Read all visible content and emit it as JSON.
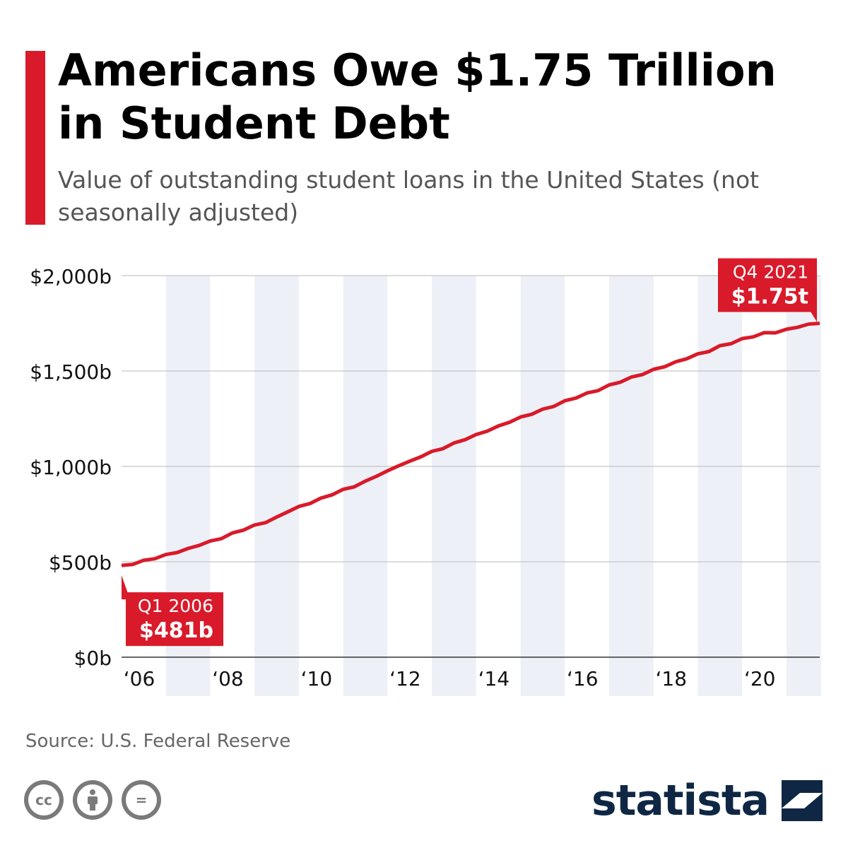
{
  "header": {
    "title": "Americans Owe $1.75 Trillion in Student Debt",
    "subtitle": "Value of outstanding student loans in the United States (not seasonally adjusted)"
  },
  "footer": {
    "source": "Source: U.S. Federal Reserve",
    "brand": "statista"
  },
  "license_icons": [
    {
      "name": "cc-icon",
      "label": "cc"
    },
    {
      "name": "attribution-icon",
      "label": ""
    },
    {
      "name": "no-derivatives-icon",
      "label": "="
    }
  ],
  "colors": {
    "accent": "#d91a2a",
    "line": "#d91a2a",
    "band": "#edf1f7",
    "grid": "#b8b8b8",
    "brand": "#0f2744"
  },
  "chart_data": {
    "type": "line",
    "title": "Americans Owe $1.75 Trillion in Student Debt",
    "subtitle": "Value of outstanding student loans in the United States (not seasonally adjusted)",
    "xlabel": "",
    "ylabel": "",
    "ylim": [
      0,
      2000
    ],
    "yticks": [
      0,
      500,
      1000,
      1500,
      2000
    ],
    "ytick_labels": [
      "$0b",
      "$500b",
      "$1,000b",
      "$1,500b",
      "$2,000b"
    ],
    "xlim": [
      2006,
      2021.75
    ],
    "xticks": [
      2006,
      2008,
      2010,
      2012,
      2014,
      2016,
      2018,
      2020
    ],
    "xtick_labels": [
      "‘06",
      "‘08",
      "‘10",
      "‘12",
      "‘14",
      "‘16",
      "‘18",
      "‘20"
    ],
    "shaded_years": [
      2007,
      2009,
      2011,
      2013,
      2015,
      2017,
      2019,
      2021
    ],
    "grid": true,
    "series": [
      {
        "values": [
          481,
          486,
          508,
          516,
          538,
          548,
          570,
          586,
          609,
          621,
          651,
          666,
          693,
          705,
          735,
          762,
          790,
          805,
          834,
          851,
          880,
          893,
          923,
          948,
          977,
          1003,
          1027,
          1050,
          1079,
          1093,
          1123,
          1140,
          1167,
          1185,
          1212,
          1231,
          1259,
          1273,
          1300,
          1314,
          1344,
          1358,
          1385,
          1397,
          1427,
          1441,
          1468,
          1481,
          1509,
          1522,
          1548,
          1564,
          1590,
          1602,
          1633,
          1643,
          1670,
          1679,
          1701,
          1700,
          1719,
          1729,
          1746,
          1750
        ]
      }
    ],
    "annotations": [
      {
        "period": "Q1 2006",
        "label": "$481b"
      },
      {
        "period": "Q4 2021",
        "label": "$1.75t"
      }
    ]
  }
}
